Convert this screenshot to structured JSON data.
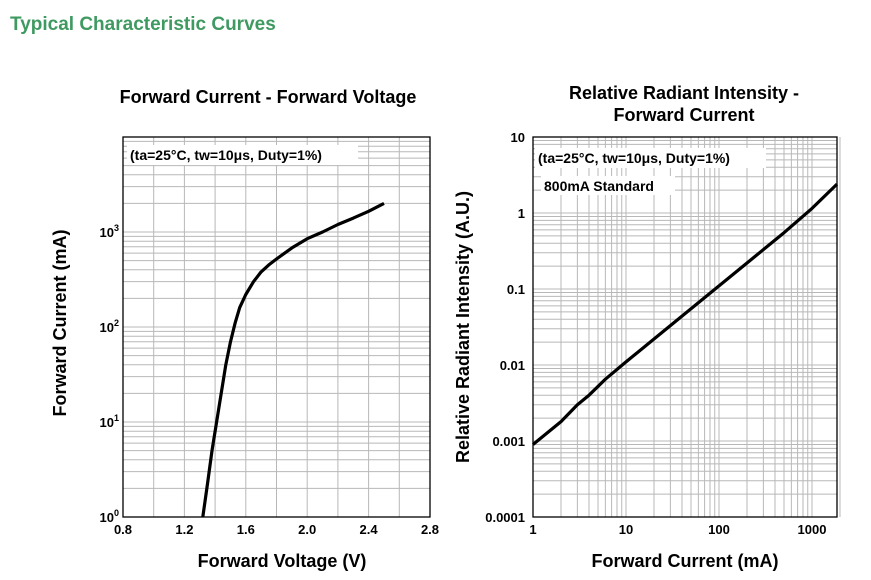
{
  "page": {
    "heading": "Typical Characteristic Curves"
  },
  "chart_data": [
    {
      "type": "line",
      "title": "Forward Current - Forward Voltage",
      "xlabel": "Forward Voltage (V)",
      "ylabel": "Forward Current (mA)",
      "xscale": "linear",
      "yscale": "log",
      "xlim": [
        0.8,
        2.8
      ],
      "ylim": [
        1,
        10000
      ],
      "x_ticks": [
        "0.8",
        "1.2",
        "1.6",
        "2.0",
        "2.4",
        "2.8"
      ],
      "y_ticks": [
        {
          "base": "10",
          "exp": "0"
        },
        {
          "base": "10",
          "exp": "1"
        },
        {
          "base": "10",
          "exp": "2"
        },
        {
          "base": "10",
          "exp": "3"
        }
      ],
      "annotations": [
        "(ta=25°C, tw=10μs, Duty=1%)"
      ],
      "grid": true,
      "series": [
        {
          "x": [
            1.32,
            1.35,
            1.38,
            1.41,
            1.44,
            1.47,
            1.5,
            1.53,
            1.56,
            1.6,
            1.65,
            1.7,
            1.75,
            1.8,
            1.9,
            2.0,
            2.1,
            2.2,
            2.3,
            2.4,
            2.5
          ],
          "y": [
            1,
            2.2,
            5,
            10,
            20,
            40,
            70,
            110,
            160,
            220,
            300,
            380,
            450,
            520,
            680,
            850,
            1000,
            1200,
            1400,
            1650,
            2000
          ]
        }
      ]
    },
    {
      "type": "line",
      "title": "Relative Radiant Intensity -\nForward Current",
      "xlabel": "Forward Current (mA)",
      "ylabel": "Relative Radiant Intensity (A.U.)",
      "xscale": "log",
      "yscale": "log",
      "xlim": [
        1,
        2000
      ],
      "ylim": [
        0.0001,
        10
      ],
      "x_ticks": [
        "1",
        "10",
        "100",
        "1000"
      ],
      "y_ticks": [
        "0.0001",
        "0.001",
        "0.01",
        "0.1",
        "1",
        "10"
      ],
      "annotations": [
        "(ta=25°C, tw=10μs, Duty=1%)",
        "800mA Standard"
      ],
      "grid": true,
      "series": [
        {
          "x": [
            1,
            2,
            3,
            4,
            6,
            10,
            20,
            50,
            100,
            200,
            500,
            1000,
            2000
          ],
          "y": [
            0.0009,
            0.0018,
            0.003,
            0.004,
            0.0065,
            0.011,
            0.022,
            0.055,
            0.11,
            0.22,
            0.55,
            1.15,
            2.4
          ]
        }
      ]
    }
  ]
}
